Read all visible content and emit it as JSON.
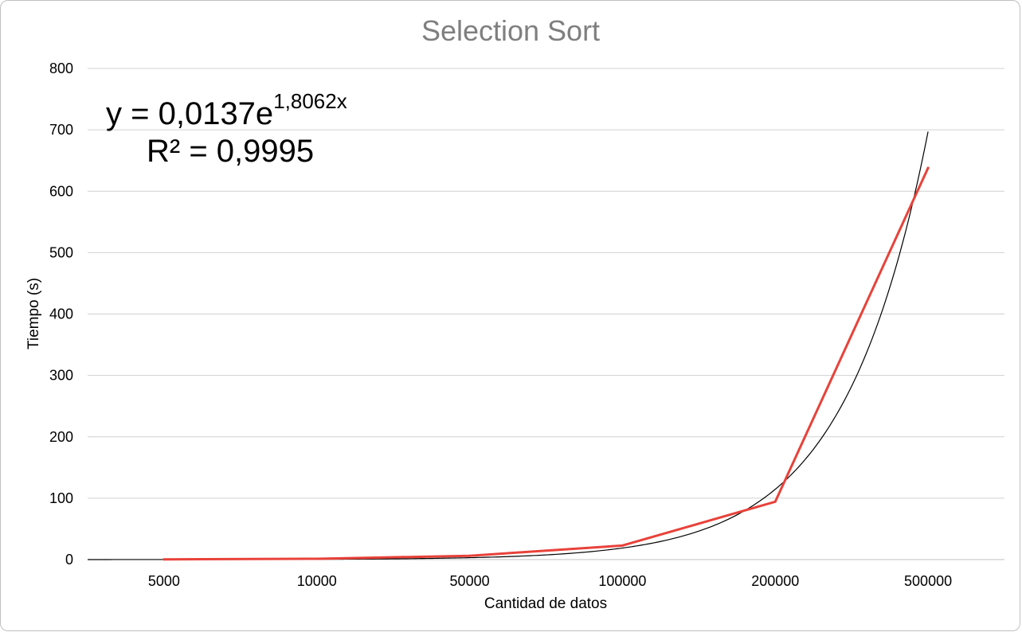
{
  "chart_data": {
    "type": "line",
    "title": "Selection Sort",
    "xlabel": "Cantidad de datos",
    "ylabel": "Tiempo (s)",
    "categories": [
      "5000",
      "10000",
      "50000",
      "100000",
      "200000",
      "500000"
    ],
    "series": [
      {
        "values": [
          0.4,
          1.3,
          6.2,
          22.9,
          94.3,
          638
        ],
        "color": "#e8423a"
      }
    ],
    "trendline": {
      "type": "exponential",
      "a": 0.0137,
      "b": 1.8062,
      "color": "#000000",
      "equation_main": "y = 0,0137e",
      "equation_exp": "1,8062x",
      "r2_label": "R² = 0,9995"
    },
    "ylim": [
      0,
      800
    ],
    "yticks": [
      "0",
      "100",
      "200",
      "300",
      "400",
      "500",
      "600",
      "700",
      "800"
    ],
    "grid": true,
    "legend": "none"
  }
}
